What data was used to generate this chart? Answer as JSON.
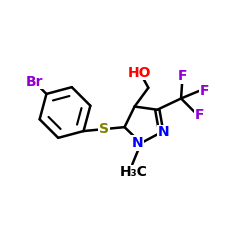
{
  "background": "#ffffff",
  "bond_color": "#000000",
  "bond_width": 1.8,
  "atom_colors": {
    "Br": "#9400D3",
    "S": "#808000",
    "N": "#0000FF",
    "O": "#FF0000",
    "F": "#9400D3",
    "C": "#000000",
    "H": "#000000"
  },
  "font_size_large": 11,
  "font_size_medium": 10,
  "font_size_small": 9
}
